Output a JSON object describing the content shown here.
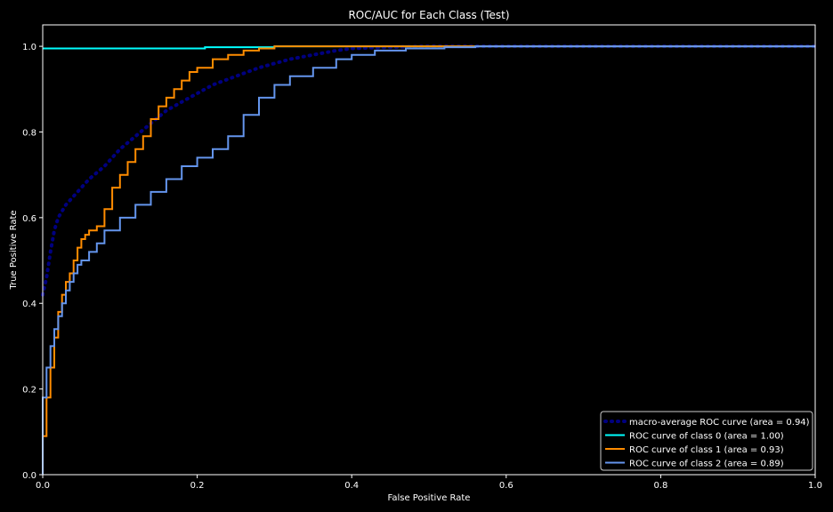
{
  "chart_data": {
    "type": "line",
    "title": "ROC/AUC for Each Class (Test)",
    "xlabel": "False Positive Rate",
    "ylabel": "True Positive Rate",
    "xlim": [
      0.0,
      1.0
    ],
    "ylim": [
      0.0,
      1.05
    ],
    "xticks": [
      "0.0",
      "0.2",
      "0.4",
      "0.6",
      "0.8",
      "1.0"
    ],
    "yticks": [
      "0.0",
      "0.2",
      "0.4",
      "0.6",
      "0.8",
      "1.0"
    ],
    "grid": false,
    "legend_position": "lower-right",
    "background": "#000000",
    "series": [
      {
        "name": "macro-average ROC curve (area = 0.94)",
        "color": "#000080",
        "style": "dotted",
        "x": [
          0.0,
          0.005,
          0.01,
          0.015,
          0.02,
          0.03,
          0.04,
          0.05,
          0.06,
          0.08,
          0.1,
          0.12,
          0.14,
          0.16,
          0.18,
          0.2,
          0.22,
          0.25,
          0.28,
          0.3,
          0.32,
          0.35,
          0.38,
          0.4,
          0.45,
          0.5,
          0.56,
          0.6,
          0.8,
          1.0
        ],
        "y": [
          0.42,
          0.46,
          0.52,
          0.57,
          0.6,
          0.63,
          0.65,
          0.67,
          0.69,
          0.72,
          0.76,
          0.79,
          0.82,
          0.85,
          0.87,
          0.89,
          0.91,
          0.93,
          0.95,
          0.96,
          0.97,
          0.98,
          0.99,
          0.995,
          0.998,
          1.0,
          1.0,
          1.0,
          1.0,
          1.0
        ]
      },
      {
        "name": "ROC curve of class 0 (area = 1.00)",
        "color": "#00ffff",
        "style": "solid",
        "x": [
          0.0,
          0.21,
          0.21,
          0.3,
          0.3,
          1.0
        ],
        "y": [
          0.995,
          0.995,
          0.998,
          0.998,
          1.0,
          1.0
        ]
      },
      {
        "name": "ROC curve of class 1 (area = 0.93)",
        "color": "#ff8c00",
        "style": "solid",
        "x": [
          0.0,
          0.0,
          0.005,
          0.005,
          0.01,
          0.01,
          0.015,
          0.015,
          0.02,
          0.02,
          0.025,
          0.025,
          0.03,
          0.03,
          0.035,
          0.035,
          0.04,
          0.04,
          0.045,
          0.045,
          0.05,
          0.05,
          0.055,
          0.055,
          0.06,
          0.06,
          0.07,
          0.07,
          0.08,
          0.08,
          0.09,
          0.09,
          0.1,
          0.1,
          0.11,
          0.11,
          0.12,
          0.12,
          0.13,
          0.13,
          0.14,
          0.14,
          0.15,
          0.15,
          0.16,
          0.16,
          0.17,
          0.17,
          0.18,
          0.18,
          0.19,
          0.19,
          0.2,
          0.2,
          0.22,
          0.22,
          0.24,
          0.24,
          0.26,
          0.26,
          0.28,
          0.28,
          0.3,
          0.3,
          1.0
        ],
        "y": [
          0.0,
          0.09,
          0.09,
          0.18,
          0.18,
          0.25,
          0.25,
          0.32,
          0.32,
          0.38,
          0.38,
          0.42,
          0.42,
          0.45,
          0.45,
          0.47,
          0.47,
          0.5,
          0.5,
          0.53,
          0.53,
          0.55,
          0.55,
          0.56,
          0.56,
          0.57,
          0.57,
          0.58,
          0.58,
          0.62,
          0.62,
          0.67,
          0.67,
          0.7,
          0.7,
          0.73,
          0.73,
          0.76,
          0.76,
          0.79,
          0.79,
          0.83,
          0.83,
          0.86,
          0.86,
          0.88,
          0.88,
          0.9,
          0.9,
          0.92,
          0.92,
          0.94,
          0.94,
          0.95,
          0.95,
          0.97,
          0.97,
          0.98,
          0.98,
          0.99,
          0.99,
          0.995,
          0.995,
          1.0,
          1.0
        ]
      },
      {
        "name": "ROC curve of class 2 (area = 0.89)",
        "color": "#6495ed",
        "style": "solid",
        "x": [
          0.0,
          0.0,
          0.005,
          0.005,
          0.01,
          0.01,
          0.015,
          0.015,
          0.02,
          0.02,
          0.025,
          0.025,
          0.03,
          0.03,
          0.035,
          0.035,
          0.04,
          0.04,
          0.045,
          0.045,
          0.05,
          0.05,
          0.06,
          0.06,
          0.07,
          0.07,
          0.08,
          0.08,
          0.1,
          0.1,
          0.12,
          0.12,
          0.14,
          0.14,
          0.16,
          0.16,
          0.18,
          0.18,
          0.2,
          0.2,
          0.22,
          0.22,
          0.24,
          0.24,
          0.26,
          0.26,
          0.28,
          0.28,
          0.3,
          0.3,
          0.32,
          0.32,
          0.35,
          0.35,
          0.38,
          0.38,
          0.4,
          0.4,
          0.43,
          0.43,
          0.47,
          0.47,
          0.52,
          0.52,
          0.56,
          0.56,
          1.0
        ],
        "y": [
          0.0,
          0.18,
          0.18,
          0.25,
          0.25,
          0.3,
          0.3,
          0.34,
          0.34,
          0.37,
          0.37,
          0.4,
          0.4,
          0.43,
          0.43,
          0.45,
          0.45,
          0.47,
          0.47,
          0.49,
          0.49,
          0.5,
          0.5,
          0.52,
          0.52,
          0.54,
          0.54,
          0.57,
          0.57,
          0.6,
          0.6,
          0.63,
          0.63,
          0.66,
          0.66,
          0.69,
          0.69,
          0.72,
          0.72,
          0.74,
          0.74,
          0.76,
          0.76,
          0.79,
          0.79,
          0.84,
          0.84,
          0.88,
          0.88,
          0.91,
          0.91,
          0.93,
          0.93,
          0.95,
          0.95,
          0.97,
          0.97,
          0.98,
          0.98,
          0.99,
          0.99,
          0.995,
          0.995,
          0.998,
          0.998,
          1.0,
          1.0
        ]
      }
    ]
  }
}
